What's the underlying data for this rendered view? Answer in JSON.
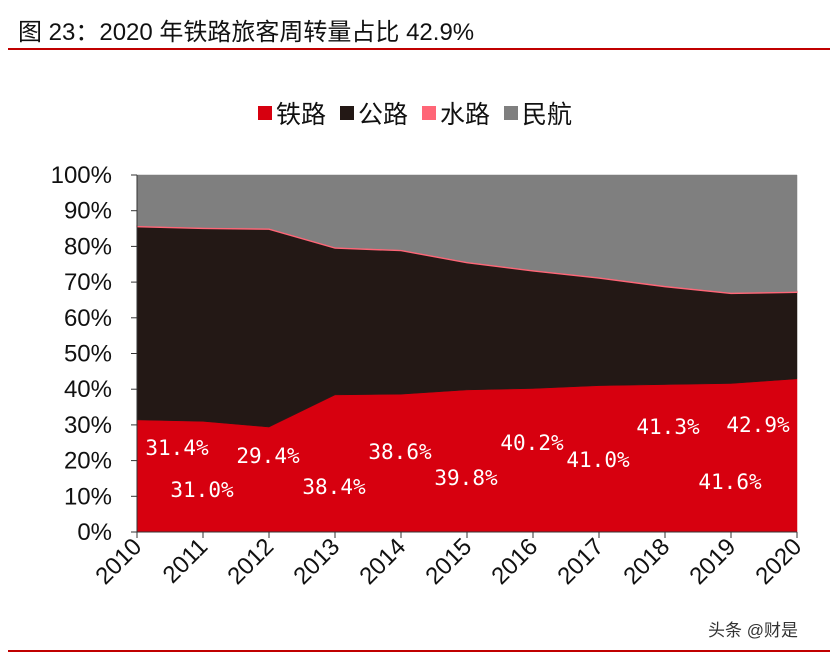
{
  "title": "图 23：2020 年铁路旅客周转量占比 42.9%",
  "watermark": "头条 @财是",
  "chart_data": {
    "type": "area",
    "stacked": "percent",
    "categories": [
      "2010",
      "2011",
      "2012",
      "2013",
      "2014",
      "2015",
      "2016",
      "2017",
      "2018",
      "2019",
      "2020"
    ],
    "series": [
      {
        "name": "铁路",
        "color": "#d7000f",
        "values": [
          31.4,
          31.0,
          29.4,
          38.4,
          38.6,
          39.8,
          40.2,
          41.0,
          41.3,
          41.6,
          42.9
        ]
      },
      {
        "name": "公路",
        "color": "#231815",
        "values": [
          54.1,
          54.0,
          55.4,
          41.1,
          40.2,
          35.6,
          32.9,
          30.1,
          27.4,
          25.2,
          24.2
        ]
      },
      {
        "name": "水路",
        "color": "#ff6677",
        "values": [
          0.3,
          0.3,
          0.3,
          0.3,
          0.3,
          0.3,
          0.3,
          0.3,
          0.3,
          0.3,
          0.3
        ]
      },
      {
        "name": "民航",
        "color": "#7f7f7f",
        "values": [
          14.2,
          14.7,
          14.9,
          20.2,
          20.9,
          24.3,
          26.6,
          28.6,
          31.0,
          32.9,
          32.6
        ]
      }
    ],
    "data_labels": [
      "31.4%",
      "31.0%",
      "29.4%",
      "38.4%",
      "38.6%",
      "39.8%",
      "40.2%",
      "41.0%",
      "41.3%",
      "41.6%",
      "42.9%"
    ],
    "yticks": [
      "0%",
      "10%",
      "20%",
      "30%",
      "40%",
      "50%",
      "60%",
      "70%",
      "80%",
      "90%",
      "100%"
    ],
    "ylim": [
      0,
      100
    ],
    "legend": "top",
    "grid": false
  }
}
